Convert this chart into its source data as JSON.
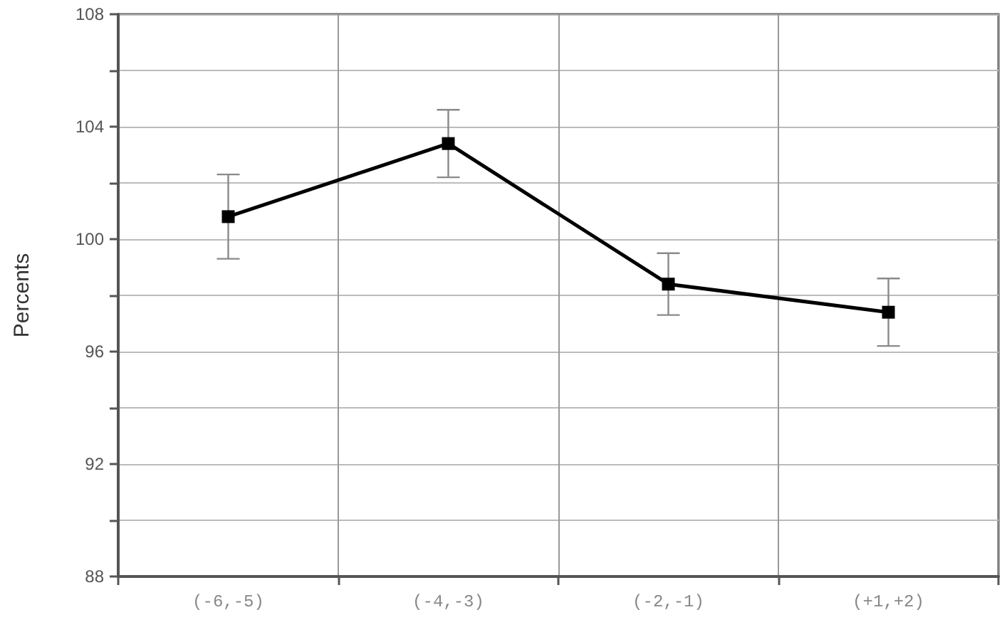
{
  "chart_data": {
    "type": "line",
    "ylabel": "Percents",
    "categories": [
      "(-6,-5)",
      "(-4,-3)",
      "(-2,-1)",
      "(+1,+2)"
    ],
    "series": [
      {
        "color": "#000000",
        "values": [
          100.8,
          103.4,
          98.4,
          97.4
        ],
        "errors": [
          [
            99.3,
            102.3
          ],
          [
            102.2,
            104.6
          ],
          [
            97.3,
            99.5
          ],
          [
            96.2,
            98.6
          ]
        ]
      }
    ],
    "ylim": [
      88,
      108
    ],
    "yticks": [
      88,
      {
        "value": 90,
        "label": null
      },
      92,
      {
        "value": 94,
        "label": null
      },
      96,
      {
        "value": 98,
        "label": null
      },
      100,
      {
        "value": 102,
        "label": null
      },
      104,
      {
        "value": 106,
        "label": null
      },
      108
    ],
    "grid": true,
    "marker": "square",
    "line_style": "solid"
  }
}
